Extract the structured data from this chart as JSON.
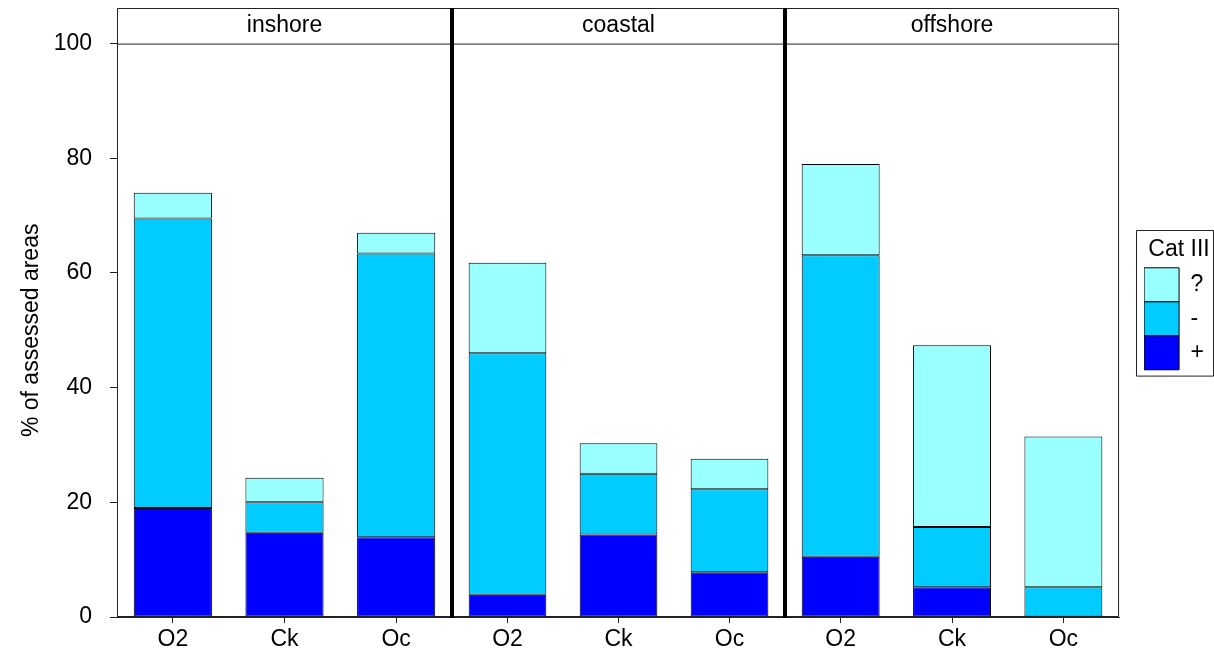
{
  "chart_data": [
    {
      "type": "bar",
      "title": "inshore",
      "ylabel": "% of assessed areas",
      "categories": [
        "O2",
        "Ck",
        "Oc"
      ],
      "stacked": true,
      "ylim": [
        0,
        100
      ],
      "yticks": [
        0,
        20,
        40,
        60,
        80,
        100
      ],
      "series": [
        {
          "color": "#0000ff",
          "values": [
            19,
            14.7,
            13.9
          ]
        },
        {
          "color": "#00ccff",
          "values": [
            50.5,
            5.3,
            49.5
          ]
        },
        {
          "color": "#99ffff",
          "values": [
            4.5,
            4.3,
            3.6
          ]
        }
      ]
    },
    {
      "type": "bar",
      "title": "coastal",
      "categories": [
        "O2",
        "Ck",
        "Oc"
      ],
      "stacked": true,
      "ylim": [
        0,
        100
      ],
      "tick_labels": "x",
      "series": [
        {
          "color": "#0000ff",
          "values": [
            3.9,
            14.4,
            7.8
          ]
        },
        {
          "color": "#00ccff",
          "values": [
            42.1,
            10.6,
            14.5
          ]
        },
        {
          "color": "#99ffff",
          "values": [
            15.8,
            5.3,
            5.3
          ]
        }
      ]
    },
    {
      "type": "bar",
      "title": "offshore",
      "categories": [
        "O2",
        "Ck",
        "Oc"
      ],
      "stacked": true,
      "ylim": [
        0,
        100
      ],
      "tick_labels": "x",
      "legend": "right",
      "legend_title": "Cat III",
      "series": [
        {
          "name": "+",
          "color": "#0000ff",
          "values": [
            10.5,
            5.2,
            0
          ]
        },
        {
          "name": "-",
          "color": "#00ccff",
          "values": [
            52.6,
            10.5,
            5.2
          ]
        },
        {
          "name": "?",
          "color": "#99ffff",
          "values": [
            15.9,
            31.7,
            26.3
          ]
        }
      ]
    }
  ]
}
